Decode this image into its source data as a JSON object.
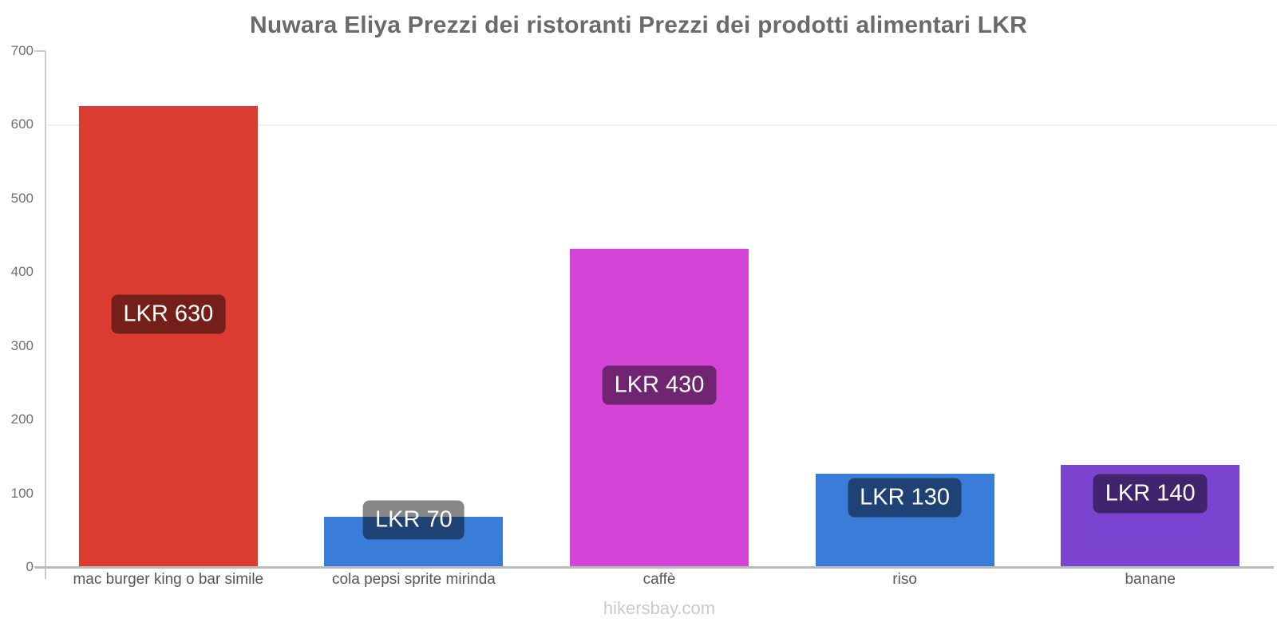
{
  "chart_data": {
    "type": "bar",
    "title": "Nuwara Eliya Prezzi dei ristoranti Prezzi dei prodotti alimentari LKR",
    "currency": "LKR",
    "watermark": "hikersbay.com",
    "categories": [
      "mac burger king o bar simile",
      "cola pepsi sprite mirinda",
      "caffè",
      "riso",
      "banane"
    ],
    "values": [
      630,
      70,
      430,
      130,
      140
    ],
    "value_labels": [
      "LKR 630",
      "LKR 70",
      "LKR 430",
      "LKR 130",
      "LKR 140"
    ],
    "values_plotted": [
      625,
      68,
      432,
      127,
      139
    ],
    "bar_colors": [
      "#dc3b31",
      "#3a7dd9",
      "#d444d6",
      "#3a7dd9",
      "#7b44d0"
    ],
    "badge_overlay_color": "rgba(0,0,0,0.47)",
    "y_ticks": [
      0,
      100,
      200,
      300,
      400,
      500,
      600,
      700
    ],
    "ylim": [
      0,
      700
    ],
    "legend": "none",
    "grid": "single faint line at 600 level",
    "axis_color": "#cccccc",
    "title_color": "#6a6a6a",
    "tick_label_color": "#707070",
    "category_label_color": "#575757",
    "watermark_color": "#c9c9d2"
  }
}
